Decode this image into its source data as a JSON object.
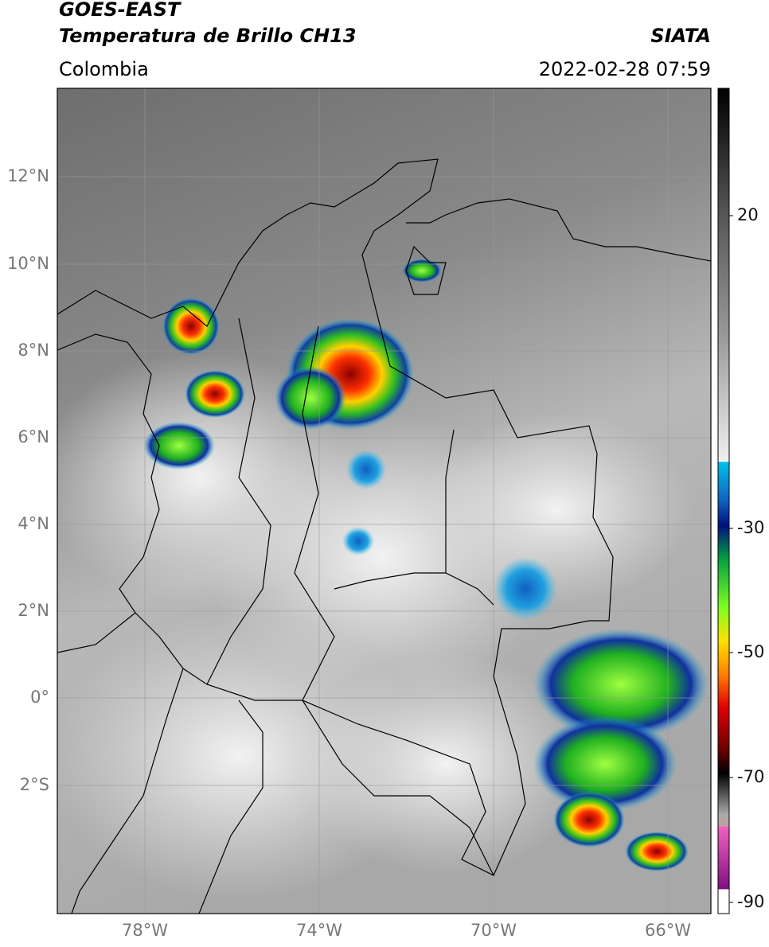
{
  "header": {
    "satellite": "GOES-EAST",
    "product": "Temperatura de Brillo CH13",
    "source": "SIATA",
    "region": "Colombia",
    "timestamp": "2022-02-28 07:59"
  },
  "map": {
    "lat_labels": [
      "12°N",
      "10°N",
      "8°N",
      "6°N",
      "4°N",
      "2°N",
      "0°",
      "2°S"
    ],
    "lon_labels": [
      "78°W",
      "74°W",
      "70°W",
      "66°W"
    ]
  },
  "colorbar": {
    "tick_labels": [
      "20",
      "-30",
      "-50",
      "-70",
      "-90"
    ]
  }
}
